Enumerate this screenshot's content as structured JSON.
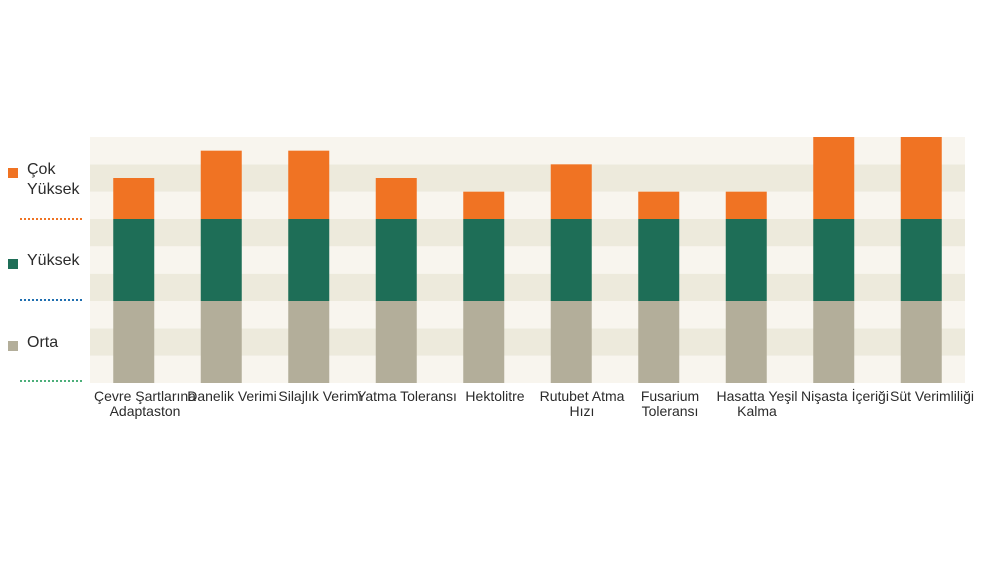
{
  "chart_data": {
    "type": "bar",
    "stacked": true,
    "categories": [
      "Çevre Şartlarına Adaptaston",
      "Danelik Verimi",
      "Silajlık Verimi",
      "Yatma Toleransı",
      "Hektolitre",
      "Rutubet Atma Hızı",
      "Fusarium Toleransı",
      "Hasatta Yeşil Kalma",
      "Nişasta İçeriği",
      "Süt Verimliliği"
    ],
    "series": [
      {
        "name": "Orta",
        "color": "#b3ae9a",
        "values": [
          3,
          3,
          3,
          3,
          3,
          3,
          3,
          3,
          3,
          3
        ]
      },
      {
        "name": "Yüksek",
        "color": "#1e6e57",
        "values": [
          3,
          3,
          3,
          3,
          3,
          3,
          3,
          3,
          3,
          3
        ]
      },
      {
        "name": "Çok Yüksek",
        "color": "#f07323",
        "values": [
          1.5,
          2.5,
          2.5,
          1.5,
          1,
          2,
          1,
          1,
          3,
          3
        ]
      }
    ],
    "ylim": [
      0,
      9
    ],
    "grid": "alternating horizontal bands",
    "legend_position": "left",
    "band_colors": [
      "#f8f5ee",
      "#edeadc"
    ]
  },
  "legend": [
    {
      "label": "Çok Yüksek",
      "color": "#f07323",
      "rule_color": "#f07323"
    },
    {
      "label": "Yüksek",
      "color": "#1e6e57",
      "rule_color": "#1f6fb0"
    },
    {
      "label": "Orta",
      "color": "#b3ae9a",
      "rule_color": "#4caf7a"
    }
  ]
}
